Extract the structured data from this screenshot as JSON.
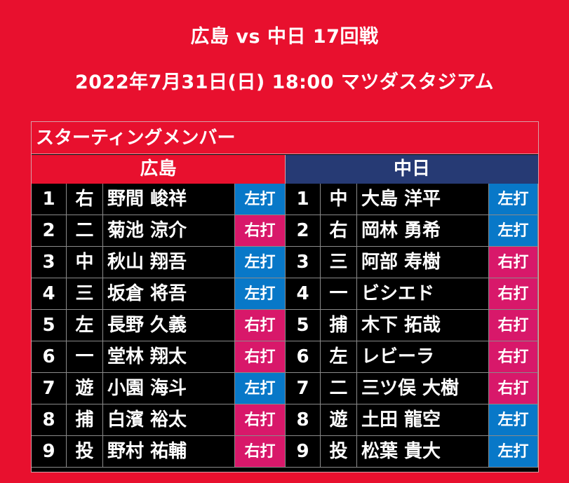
{
  "header": {
    "matchup": "広島 vs 中日 17回戦",
    "datetime_venue": "2022年7月31日(日) 18:00 マツダスタジアム"
  },
  "lineup": {
    "section_title": "スターティングメンバー",
    "home": {
      "team": "広島",
      "players": [
        {
          "order": "1",
          "pos": "右",
          "name": "野間 峻祥",
          "bat": "左打"
        },
        {
          "order": "2",
          "pos": "二",
          "name": "菊池 涼介",
          "bat": "右打"
        },
        {
          "order": "3",
          "pos": "中",
          "name": "秋山 翔吾",
          "bat": "左打"
        },
        {
          "order": "4",
          "pos": "三",
          "name": "坂倉 将吾",
          "bat": "左打"
        },
        {
          "order": "5",
          "pos": "左",
          "name": "長野 久義",
          "bat": "右打"
        },
        {
          "order": "6",
          "pos": "一",
          "name": "堂林 翔太",
          "bat": "右打"
        },
        {
          "order": "7",
          "pos": "遊",
          "name": "小園 海斗",
          "bat": "左打"
        },
        {
          "order": "8",
          "pos": "捕",
          "name": "白濱 裕太",
          "bat": "右打"
        },
        {
          "order": "9",
          "pos": "投",
          "name": "野村 祐輔",
          "bat": "右打"
        }
      ]
    },
    "away": {
      "team": "中日",
      "players": [
        {
          "order": "1",
          "pos": "中",
          "name": "大島 洋平",
          "bat": "左打"
        },
        {
          "order": "2",
          "pos": "右",
          "name": "岡林 勇希",
          "bat": "左打"
        },
        {
          "order": "3",
          "pos": "三",
          "name": "阿部 寿樹",
          "bat": "右打"
        },
        {
          "order": "4",
          "pos": "一",
          "name": "ビシエド",
          "bat": "右打"
        },
        {
          "order": "5",
          "pos": "捕",
          "name": "木下 拓哉",
          "bat": "右打"
        },
        {
          "order": "6",
          "pos": "左",
          "name": "レビーラ",
          "bat": "右打"
        },
        {
          "order": "7",
          "pos": "二",
          "name": "三ツ俣 大樹",
          "bat": "右打"
        },
        {
          "order": "8",
          "pos": "遊",
          "name": "土田 龍空",
          "bat": "左打"
        },
        {
          "order": "9",
          "pos": "投",
          "name": "松葉 貴大",
          "bat": "左打"
        }
      ]
    },
    "colors": {
      "background": "#e8102e",
      "away_header": "#263a74",
      "left_bat": "#0878c8",
      "right_bat": "#d8186a"
    }
  }
}
